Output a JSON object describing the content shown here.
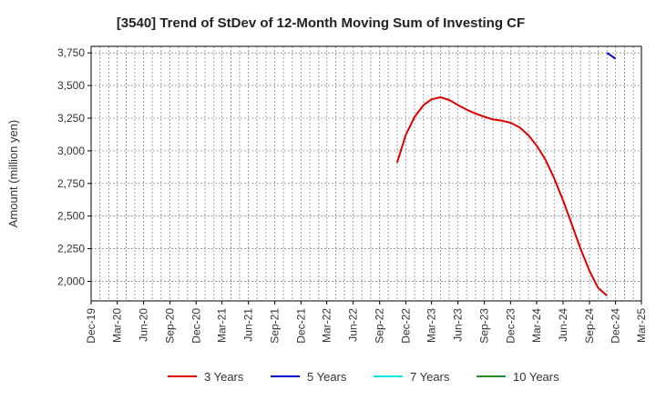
{
  "chart_data": {
    "type": "line",
    "title": "[3540]  Trend of StDev of 12-Month Moving Sum of Investing CF",
    "ylabel": "Amount (million yen)",
    "xlabel": "",
    "ylim": [
      1850,
      3800
    ],
    "y_ticks": [
      2000,
      2250,
      2500,
      2750,
      3000,
      3250,
      3500,
      3750
    ],
    "y_tick_labels": [
      "2,000",
      "2,250",
      "2,500",
      "2,750",
      "3,000",
      "3,250",
      "3,500",
      "3,750"
    ],
    "x_tick_labels": [
      "Dec-19",
      "Mar-20",
      "Jun-20",
      "Sep-20",
      "Dec-20",
      "Mar-21",
      "Jun-21",
      "Sep-21",
      "Dec-21",
      "Mar-22",
      "Jun-22",
      "Sep-22",
      "Dec-22",
      "Mar-23",
      "Jun-23",
      "Sep-23",
      "Dec-23",
      "Mar-24",
      "Jun-24",
      "Sep-24",
      "Dec-24",
      "Mar-25"
    ],
    "grid": true,
    "legend_position": "bottom",
    "series": [
      {
        "name": "3 Years",
        "color": "#dd0000",
        "x": [
          "2022-11",
          "2022-12",
          "2023-01",
          "2023-02",
          "2023-03",
          "2023-04",
          "2023-05",
          "2023-06",
          "2023-07",
          "2023-08",
          "2023-09",
          "2023-10",
          "2023-11",
          "2023-12",
          "2024-01",
          "2024-02",
          "2024-03",
          "2024-04",
          "2024-05",
          "2024-06",
          "2024-07",
          "2024-08",
          "2024-09",
          "2024-10",
          "2024-11",
          "2024-12"
        ],
        "values": [
          2910,
          3120,
          3260,
          3350,
          3395,
          3410,
          3390,
          3350,
          3315,
          3285,
          3260,
          3240,
          3230,
          3215,
          3180,
          3120,
          3040,
          2930,
          2790,
          2620,
          2440,
          2250,
          2080,
          1950,
          1890,
          null
        ]
      },
      {
        "name": "5 Years",
        "color": "#0000cc",
        "x": [
          "2024-11",
          "2024-12"
        ],
        "values": [
          3750,
          3705
        ]
      },
      {
        "name": "7 Years",
        "color": "#00e5ee",
        "x": [],
        "values": []
      },
      {
        "name": "10 Years",
        "color": "#228b22",
        "x": [],
        "values": []
      }
    ]
  }
}
